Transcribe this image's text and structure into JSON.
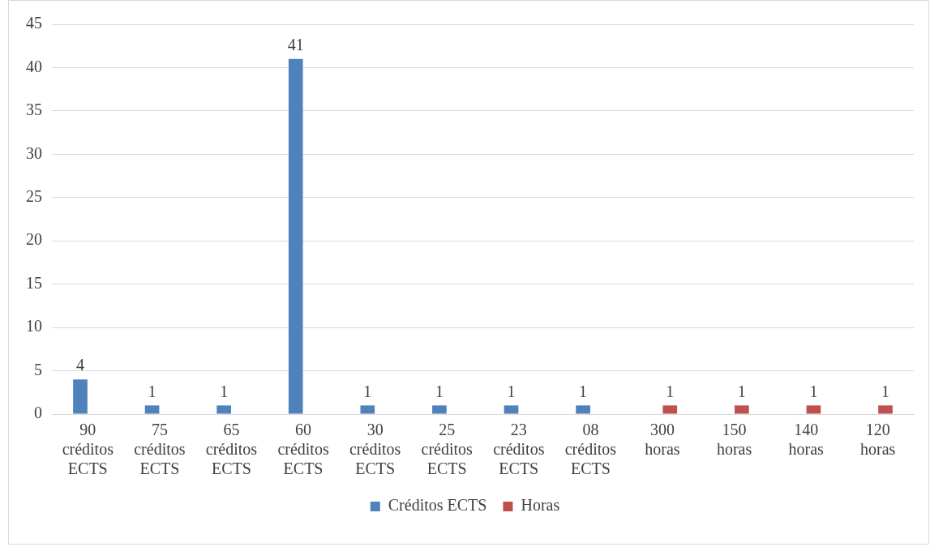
{
  "chart_data": {
    "type": "bar",
    "categories": [
      "90 créditos ECTS",
      "75 créditos ECTS",
      "65 créditos ECTS",
      "60 créditos ECTS",
      "30 créditos ECTS",
      "25 créditos ECTS",
      "23 créditos ECTS",
      "08 créditos ECTS",
      "300 horas",
      "150 horas",
      "140 horas",
      "120 horas"
    ],
    "series": [
      {
        "name": "Créditos ECTS",
        "color": "#4f81bd",
        "values": [
          4,
          1,
          1,
          41,
          1,
          1,
          1,
          1,
          null,
          null,
          null,
          null
        ]
      },
      {
        "name": "Horas",
        "color": "#c0504d",
        "values": [
          null,
          null,
          null,
          null,
          null,
          null,
          null,
          null,
          1,
          1,
          1,
          1
        ]
      }
    ],
    "ylim": [
      0,
      45
    ],
    "yticks": [
      0,
      5,
      10,
      15,
      20,
      25,
      30,
      35,
      40,
      45
    ],
    "grid": "y",
    "legend": "bottom",
    "data_labels": true
  }
}
